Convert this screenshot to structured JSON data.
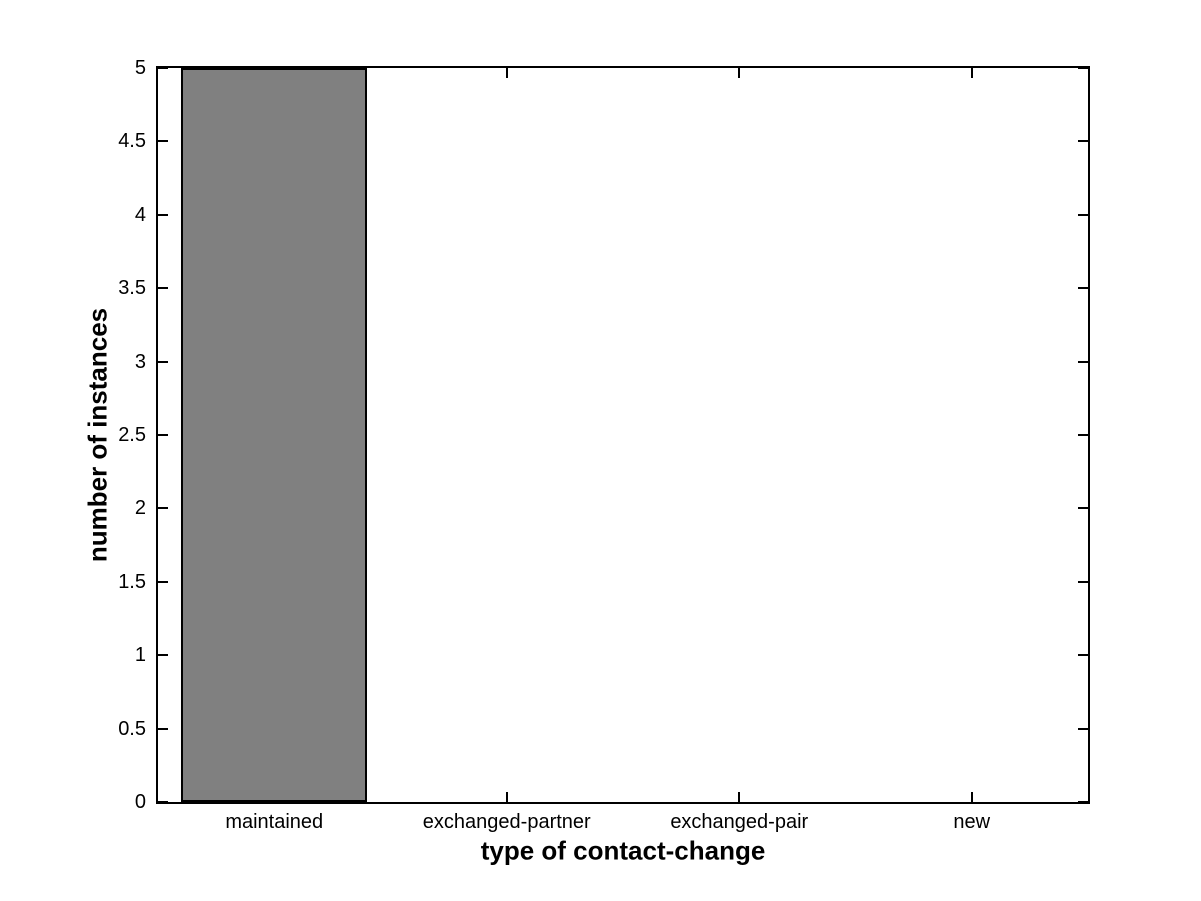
{
  "figure": {
    "background": "#ffffff"
  },
  "chart_data": {
    "type": "bar",
    "title": "",
    "xlabel": "type of contact-change",
    "ylabel": "number of instances",
    "categories": [
      "maintained",
      "exchanged-partner",
      "exchanged-pair",
      "new"
    ],
    "values": [
      5,
      0,
      0,
      0
    ],
    "ylim": [
      0,
      5
    ],
    "ytick_step": 0.5,
    "ytick_labels": [
      "0",
      "0.5",
      "1",
      "1.5",
      "2",
      "2.5",
      "3",
      "3.5",
      "4",
      "4.5",
      "5"
    ],
    "bar_width_fraction": 0.8,
    "bar_color": "#808080",
    "bar_edge_color": "#000000",
    "axis_color": "#000000",
    "grid": false,
    "legend": null
  }
}
